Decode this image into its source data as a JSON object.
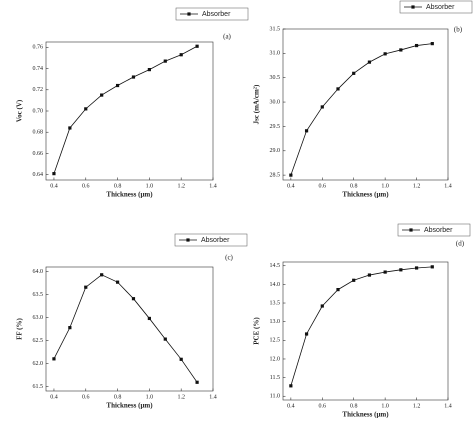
{
  "chart_data": [
    {
      "type": "line",
      "label": "(a)",
      "x_label": "Thickness (μm)",
      "y_label": "Voc (V)",
      "x": [
        0.4,
        0.5,
        0.6,
        0.7,
        0.8,
        0.9,
        1.0,
        1.1,
        1.2,
        1.3
      ],
      "series": [
        {
          "name": "Absorber",
          "color": "#111111",
          "values": [
            0.641,
            0.684,
            0.702,
            0.715,
            0.724,
            0.732,
            0.739,
            0.747,
            0.753,
            0.761
          ]
        }
      ],
      "xlim": [
        0.35,
        1.4
      ],
      "xticks": [
        0.4,
        0.6,
        0.8,
        {
          "value": 1,
          "label": "1.0"
        },
        1.2,
        1.4
      ],
      "ylim": [
        0.635,
        0.765
      ],
      "yticks": [
        0.64,
        0.66,
        0.68,
        {
          "value": 0.7,
          "label": "0.70"
        },
        0.72,
        0.74,
        0.76
      ]
    },
    {
      "type": "line",
      "label": "(b)",
      "x_label": "Thickness (μm)",
      "y_label": "Jsc (mA/cm²)",
      "x": [
        0.4,
        0.5,
        0.6,
        0.7,
        0.8,
        0.9,
        1.0,
        1.1,
        1.2,
        1.3
      ],
      "series": [
        {
          "name": "Absorber",
          "color": "#111111",
          "values": [
            28.5,
            29.41,
            29.9,
            30.27,
            30.59,
            30.82,
            30.99,
            31.07,
            31.16,
            31.2
          ]
        }
      ],
      "xlim": [
        0.35,
        1.4
      ],
      "xticks": [
        0.4,
        0.6,
        0.8,
        {
          "value": 1,
          "label": "1.0"
        },
        1.2,
        1.4
      ],
      "ylim": [
        28.4,
        31.5
      ],
      "yticks": [
        28.5,
        {
          "value": 29,
          "label": "29.0"
        },
        29.5,
        {
          "value": 30,
          "label": "30.0"
        },
        30.5,
        {
          "value": 31,
          "label": "31.0"
        },
        31.5
      ]
    },
    {
      "type": "line",
      "label": "(c)",
      "x_label": "Thickness (μm)",
      "y_label": "FF (%)",
      "x": [
        0.4,
        0.5,
        0.6,
        0.7,
        0.8,
        0.9,
        1.0,
        1.1,
        1.2,
        1.3
      ],
      "series": [
        {
          "name": "Absorber",
          "color": "#111111",
          "values": [
            62.1,
            62.78,
            63.66,
            63.93,
            63.77,
            63.41,
            62.98,
            62.53,
            62.09,
            61.59
          ]
        }
      ],
      "xlim": [
        0.35,
        1.4
      ],
      "xticks": [
        0.4,
        0.6,
        0.8,
        {
          "value": 1,
          "label": "1.0"
        },
        1.2,
        1.4
      ],
      "ylim": [
        61.4,
        64.1
      ],
      "yticks": [
        61.5,
        {
          "value": 62,
          "label": "62.0"
        },
        62.5,
        {
          "value": 63,
          "label": "63.0"
        },
        63.5,
        {
          "value": 64,
          "label": "64.0"
        }
      ]
    },
    {
      "type": "line",
      "label": "(d)",
      "x_label": "Thickness (μm)",
      "y_label": "PCE (%)",
      "x": [
        0.4,
        0.5,
        0.6,
        0.7,
        0.8,
        0.9,
        1.0,
        1.1,
        1.2,
        1.3
      ],
      "series": [
        {
          "name": "Absorber",
          "color": "#111111",
          "values": [
            11.28,
            12.67,
            13.42,
            13.86,
            14.11,
            14.25,
            14.33,
            14.39,
            14.44,
            14.47
          ]
        }
      ],
      "xlim": [
        0.35,
        1.4
      ],
      "xticks": [
        0.4,
        0.6,
        0.8,
        {
          "value": 1,
          "label": "1.0"
        },
        1.2,
        1.4
      ],
      "ylim": [
        10.9,
        14.6
      ],
      "yticks": [
        {
          "value": 11,
          "label": "11.0"
        },
        11.5,
        {
          "value": 12,
          "label": "12.0"
        },
        12.5,
        {
          "value": 13,
          "label": "13.0"
        },
        13.5,
        {
          "value": 14,
          "label": "14.0"
        },
        14.5
      ]
    }
  ]
}
